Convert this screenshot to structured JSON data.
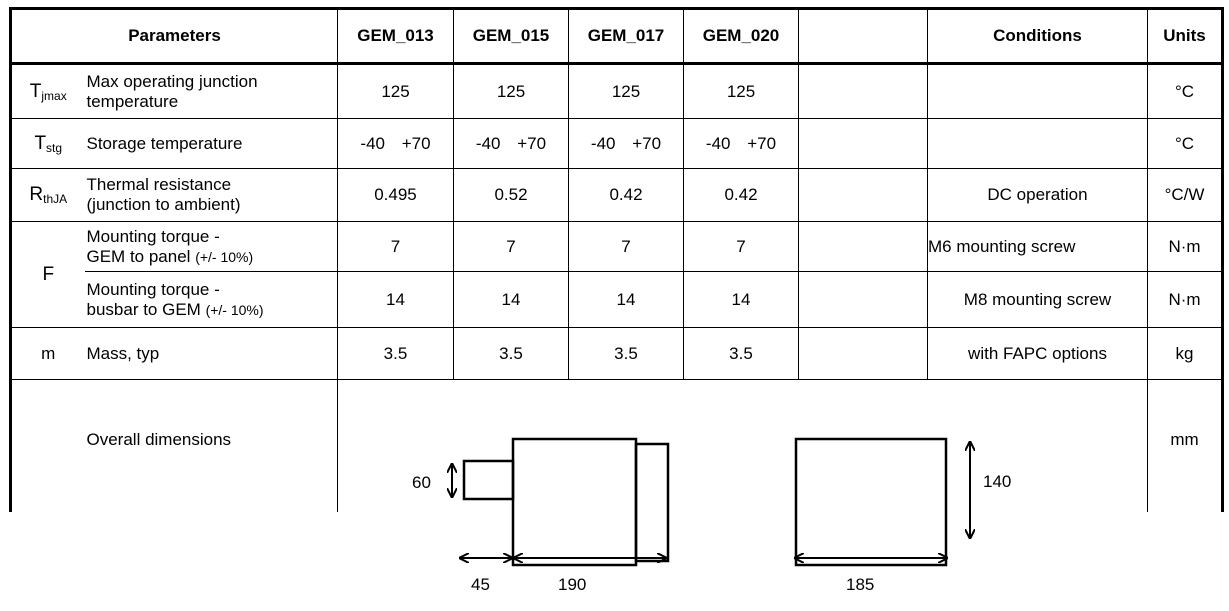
{
  "header": {
    "parameters": "Parameters",
    "models": [
      "GEM_013",
      "GEM_015",
      "GEM_017",
      "GEM_020"
    ],
    "empty": "",
    "conditions": "Conditions",
    "units": "Units"
  },
  "rows": [
    {
      "sym": "T",
      "sub": "jmax",
      "desc1": "Max operating junction",
      "desc2": "temperature",
      "values": [
        "125",
        "125",
        "125",
        "125"
      ],
      "condition": "",
      "unit": "°C"
    },
    {
      "sym": "T",
      "sub": "stg",
      "desc1": "Storage temperature",
      "values": [
        "-40 +70",
        "-40 +70",
        "-40 +70",
        "-40 +70"
      ],
      "condition": "",
      "unit": "°C"
    },
    {
      "sym": "R",
      "sub": "thJA",
      "desc1": "Thermal resistance",
      "desc2": "(junction to ambient)",
      "values": [
        "0.495",
        "0.52",
        "0.42",
        "0.42"
      ],
      "condition": "DC operation",
      "unit": "°C/W"
    },
    {
      "sym": "F",
      "desc1": "Mounting torque -",
      "desc2": "GEM to panel",
      "tol": "(+/- 10%)",
      "values": [
        "7",
        "7",
        "7",
        "7"
      ],
      "condition": "M6 mounting screw",
      "unit": "N·m"
    },
    {
      "desc1": "Mounting torque -",
      "desc2": "busbar to GEM",
      "tol": "(+/- 10%)",
      "values": [
        "14",
        "14",
        "14",
        "14"
      ],
      "condition": "M8 mounting screw",
      "unit": "N·m"
    },
    {
      "sym": "m",
      "desc1": "Mass, typ",
      "values": [
        "3.5",
        "3.5",
        "3.5",
        "3.5"
      ],
      "condition": "with FAPC options",
      "unit": "kg"
    },
    {
      "desc1": "Overall dimensions",
      "unit": "mm"
    }
  ],
  "dimensions": {
    "height_small": "60",
    "length_stub": "45",
    "length_body": "190",
    "height_front": "140",
    "width_front": "185"
  }
}
